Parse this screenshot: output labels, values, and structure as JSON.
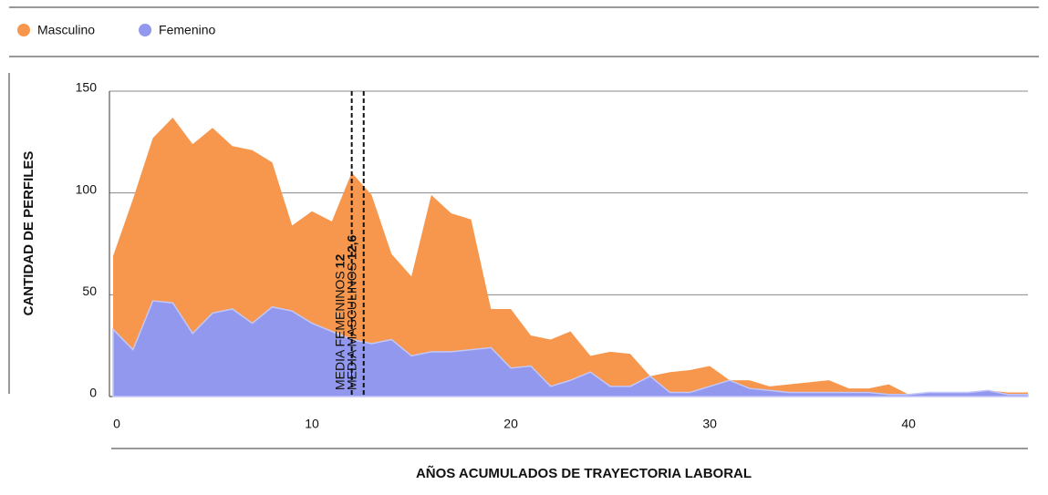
{
  "chart_data": {
    "type": "area",
    "x": [
      0,
      1,
      2,
      3,
      4,
      5,
      6,
      7,
      8,
      9,
      10,
      11,
      12,
      13,
      14,
      15,
      16,
      17,
      18,
      19,
      20,
      21,
      22,
      23,
      24,
      25,
      26,
      27,
      28,
      29,
      30,
      31,
      32,
      33,
      34,
      35,
      36,
      37,
      38,
      39,
      40,
      41,
      42,
      43,
      44,
      45,
      46
    ],
    "series": [
      {
        "name": "Masculino",
        "color": "#f7974d",
        "values": [
          69,
          97,
          127,
          137,
          124,
          132,
          123,
          121,
          115,
          84,
          91,
          86,
          110,
          99,
          70,
          59,
          99,
          90,
          87,
          43,
          43,
          30,
          28,
          32,
          20,
          22,
          21,
          10,
          12,
          13,
          15,
          8,
          8,
          5,
          6,
          7,
          8,
          4,
          4,
          6,
          1,
          2,
          2,
          2,
          3,
          2,
          2
        ]
      },
      {
        "name": "Femenino",
        "color": "#9198ee",
        "values": [
          33,
          23,
          47,
          46,
          31,
          41,
          43,
          36,
          44,
          42,
          36,
          32,
          28,
          26,
          28,
          20,
          22,
          22,
          23,
          24,
          14,
          15,
          5,
          8,
          12,
          5,
          5,
          10,
          2,
          2,
          5,
          8,
          4,
          3,
          2,
          2,
          2,
          2,
          2,
          1,
          1,
          2,
          2,
          2,
          3,
          1,
          1
        ]
      }
    ],
    "xlim": [
      0,
      46
    ],
    "xticks": [
      0,
      10,
      20,
      30,
      40
    ],
    "ylim": [
      0,
      150
    ],
    "yticks": [
      0,
      50,
      100,
      150
    ],
    "grid": true,
    "xlabel": "AÑOS ACUMULADOS DE TRAYECTORIA LABORAL",
    "ylabel": "CANTIDAD DE PERFILES",
    "annotations": [
      {
        "text": "MEDIA FEMENINOS",
        "x": 12
      },
      {
        "text": "MEDIA MASCULINOS",
        "x": {
          "value": 12.6,
          "label": "12,6"
        }
      }
    ]
  }
}
